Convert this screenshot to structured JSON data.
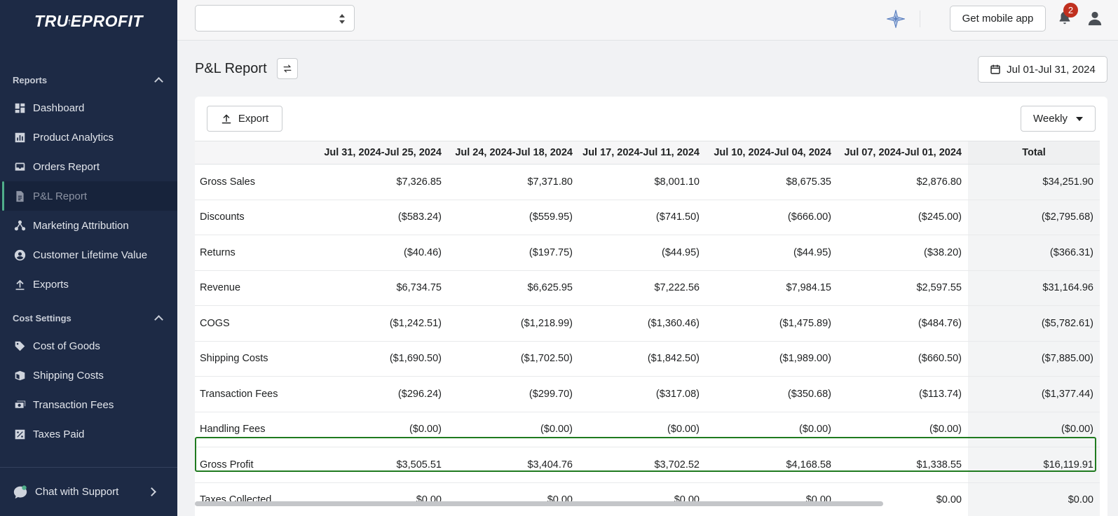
{
  "app": {
    "logo_text_1": "TRU",
    "logo_arrow": "↑",
    "logo_text_2": "EPROFIT"
  },
  "sidebar": {
    "reports_label": "Reports",
    "reports_items": [
      {
        "label": "Dashboard",
        "icon": "dashboard-icon"
      },
      {
        "label": "Product Analytics",
        "icon": "bar-chart-icon"
      },
      {
        "label": "Orders Report",
        "icon": "inbox-icon"
      },
      {
        "label": "P&L Report",
        "icon": "document-icon",
        "active": true
      },
      {
        "label": "Marketing Attribution",
        "icon": "network-icon"
      },
      {
        "label": "Customer Lifetime Value",
        "icon": "user-circle-icon"
      },
      {
        "label": "Exports",
        "icon": "upload-icon"
      }
    ],
    "cost_label": "Cost Settings",
    "cost_items": [
      {
        "label": "Cost of Goods",
        "icon": "tag-icon"
      },
      {
        "label": "Shipping Costs",
        "icon": "package-icon"
      },
      {
        "label": "Transaction Fees",
        "icon": "cash-icon"
      },
      {
        "label": "Taxes Paid",
        "icon": "percent-icon"
      }
    ],
    "chat_label": "Chat with Support"
  },
  "topbar": {
    "store_value": "",
    "mobile_app_label": "Get mobile app",
    "notification_count": "2"
  },
  "page": {
    "title": "P&L Report",
    "date_range": "Jul 01-Jul 31, 2024",
    "export_label": "Export",
    "period_label": "Weekly"
  },
  "table": {
    "columns": [
      "",
      "Jul 31, 2024-Jul 25, 2024",
      "Jul 24, 2024-Jul 18, 2024",
      "Jul 17, 2024-Jul 11, 2024",
      "Jul 10, 2024-Jul 04, 2024",
      "Jul 07, 2024-Jul 01, 2024",
      "Total"
    ],
    "rows": [
      [
        "Gross Sales",
        "$7,326.85",
        "$7,371.80",
        "$8,001.10",
        "$8,675.35",
        "$2,876.80",
        "$34,251.90"
      ],
      [
        "Discounts",
        "($583.24)",
        "($559.95)",
        "($741.50)",
        "($666.00)",
        "($245.00)",
        "($2,795.68)"
      ],
      [
        "Returns",
        "($40.46)",
        "($197.75)",
        "($44.95)",
        "($44.95)",
        "($38.20)",
        "($366.31)"
      ],
      [
        "Revenue",
        "$6,734.75",
        "$6,625.95",
        "$7,222.56",
        "$7,984.15",
        "$2,597.55",
        "$31,164.96"
      ],
      [
        "COGS",
        "($1,242.51)",
        "($1,218.99)",
        "($1,360.46)",
        "($1,475.89)",
        "($484.76)",
        "($5,782.61)"
      ],
      [
        "Shipping Costs",
        "($1,690.50)",
        "($1,702.50)",
        "($1,842.50)",
        "($1,989.00)",
        "($660.50)",
        "($7,885.00)"
      ],
      [
        "Transaction Fees",
        "($296.24)",
        "($299.70)",
        "($317.08)",
        "($350.68)",
        "($113.74)",
        "($1,377.44)"
      ],
      [
        "Handling Fees",
        "($0.00)",
        "($0.00)",
        "($0.00)",
        "($0.00)",
        "($0.00)",
        "($0.00)"
      ],
      [
        "Gross Profit",
        "$3,505.51",
        "$3,404.76",
        "$3,702.52",
        "$4,168.58",
        "$1,338.55",
        "$16,119.91"
      ],
      [
        "Taxes Collected",
        "$0.00",
        "$0.00",
        "$0.00",
        "$0.00",
        "$0.00",
        "$0.00"
      ]
    ]
  }
}
